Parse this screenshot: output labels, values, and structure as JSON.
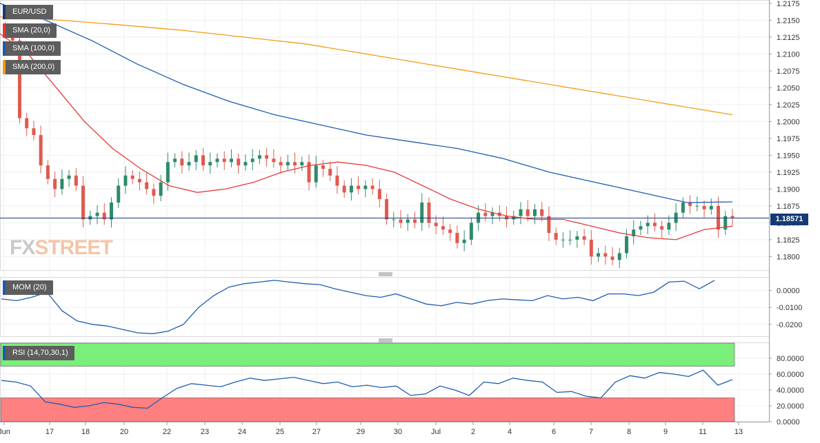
{
  "chart_data": [
    {
      "type": "line",
      "panel": "price",
      "instrument": "EUR/USD",
      "legend": [
        "SMA (20,0)",
        "SMA (100,0)",
        "SMA (200,0)"
      ],
      "x_ticks": [
        "Jun",
        "17",
        "18",
        "20",
        "22",
        "23",
        "24",
        "25",
        "27",
        "29",
        "30",
        "Jul",
        "2",
        "4",
        "6",
        "7",
        "8",
        "9",
        "11",
        "13"
      ],
      "y_ticks": [
        "1.2175",
        "1.2150",
        "1.2125",
        "1.2100",
        "1.2075",
        "1.2050",
        "1.2025",
        "1.2000",
        "1.1975",
        "1.1950",
        "1.1925",
        "1.1900",
        "1.1875",
        "1.1850",
        "1.1825",
        "1.1800"
      ],
      "ylim": [
        1.178,
        1.218
      ],
      "last_price": "1.18571",
      "last_price_value": 1.18571,
      "candles_close": [
        1.213,
        1.212,
        1.2005,
        1.199,
        1.198,
        1.1935,
        1.1915,
        1.19,
        1.1915,
        1.192,
        1.1905,
        1.1855,
        1.186,
        1.1865,
        1.1855,
        1.188,
        1.1905,
        1.192,
        1.1915,
        1.191,
        1.19,
        1.189,
        1.191,
        1.194,
        1.1945,
        1.1935,
        1.194,
        1.195,
        1.1935,
        1.194,
        1.1945,
        1.194,
        1.1945,
        1.1935,
        1.194,
        1.1945,
        1.195,
        1.1945,
        1.194,
        1.1935,
        1.194,
        1.1935,
        1.194,
        1.191,
        1.1935,
        1.193,
        1.192,
        1.1905,
        1.1895,
        1.1905,
        1.19,
        1.1905,
        1.19,
        1.1885,
        1.1855,
        1.1855,
        1.185,
        1.1855,
        1.185,
        1.188,
        1.185,
        1.1845,
        1.184,
        1.1835,
        1.182,
        1.1825,
        1.185,
        1.1865,
        1.186,
        1.1865,
        1.186,
        1.1855,
        1.186,
        1.187,
        1.186,
        1.187,
        1.186,
        1.1835,
        1.1825,
        1.1825,
        1.1825,
        1.183,
        1.1825,
        1.18,
        1.1805,
        1.18,
        1.1795,
        1.1805,
        1.183,
        1.184,
        1.1845,
        1.185,
        1.1845,
        1.184,
        1.185,
        1.1865,
        1.188,
        1.1875,
        1.1875,
        1.187,
        1.1875,
        1.184,
        1.186,
        1.1857
      ],
      "series": [
        {
          "name": "SMA (20,0)",
          "color": "#e53935",
          "values": [
            1.213,
            1.21,
            1.205,
            1.2,
            1.196,
            1.193,
            1.1905,
            1.1895,
            1.19,
            1.191,
            1.1925,
            1.1935,
            1.194,
            1.1935,
            1.1925,
            1.1905,
            1.1885,
            1.187,
            1.186,
            1.1855,
            1.1855,
            1.1845,
            1.1835,
            1.1828,
            1.1825,
            1.184,
            1.1845
          ]
        },
        {
          "name": "SMA (100,0)",
          "color": "#1e5bb0",
          "values": [
            1.2175,
            1.215,
            1.212,
            1.2085,
            1.2055,
            1.203,
            1.201,
            1.1995,
            1.198,
            1.197,
            1.196,
            1.1945,
            1.1925,
            1.191,
            1.1895,
            1.188,
            1.1881
          ]
        },
        {
          "name": "SMA (200,0)",
          "color": "#f39c12",
          "values": [
            1.2155,
            1.215,
            1.2143,
            1.2135,
            1.2125,
            1.2115,
            1.21,
            1.2085,
            1.207,
            1.2055,
            1.204,
            1.2025,
            1.201
          ]
        }
      ],
      "colors": {
        "up": "#2e8b68",
        "down": "#e05a4f",
        "price_line": "#163a74"
      }
    },
    {
      "type": "line",
      "panel": "momentum",
      "legend": [
        "MOM (20)"
      ],
      "y_ticks": [
        "0.0000",
        "-0.0100",
        "-0.0200"
      ],
      "ylim": [
        -0.027,
        0.008
      ],
      "series": [
        {
          "name": "MOM (20)",
          "color": "#1e5bb0",
          "values": [
            -0.005,
            -0.006,
            -0.004,
            -0.001,
            -0.012,
            -0.018,
            -0.02,
            -0.021,
            -0.023,
            -0.025,
            -0.0255,
            -0.024,
            -0.02,
            -0.01,
            -0.003,
            0.002,
            0.004,
            0.005,
            0.006,
            0.005,
            0.004,
            0.0035,
            0.001,
            -0.001,
            -0.003,
            -0.004,
            -0.002,
            -0.005,
            -0.008,
            -0.009,
            -0.007,
            -0.008,
            -0.006,
            -0.005,
            -0.0055,
            -0.006,
            -0.003,
            -0.005,
            -0.004,
            -0.006,
            -0.002,
            -0.002,
            -0.003,
            -0.001,
            0.005,
            0.0055,
            0.001,
            0.006
          ]
        }
      ]
    },
    {
      "type": "line",
      "panel": "rsi",
      "legend": [
        "RSI (14,70,30,1)"
      ],
      "y_ticks": [
        "80.0000",
        "60.0000",
        "40.0000",
        "20.0000",
        "0.0000"
      ],
      "ylim": [
        0,
        100
      ],
      "bands": {
        "overbought": 70,
        "oversold": 30,
        "overbought_color": "#7af07a",
        "oversold_color": "#ff8080"
      },
      "series": [
        {
          "name": "RSI (14,70,30,1)",
          "color": "#1e5bb0",
          "values": [
            52,
            50,
            45,
            25,
            22,
            18,
            20,
            24,
            22,
            18,
            17,
            30,
            42,
            48,
            46,
            44,
            50,
            55,
            52,
            54,
            56,
            52,
            48,
            50,
            44,
            46,
            43,
            45,
            33,
            35,
            45,
            40,
            33,
            50,
            48,
            55,
            52,
            50,
            37,
            38,
            32,
            30,
            50,
            58,
            55,
            62,
            60,
            57,
            65,
            46,
            53
          ]
        }
      ]
    }
  ]
}
